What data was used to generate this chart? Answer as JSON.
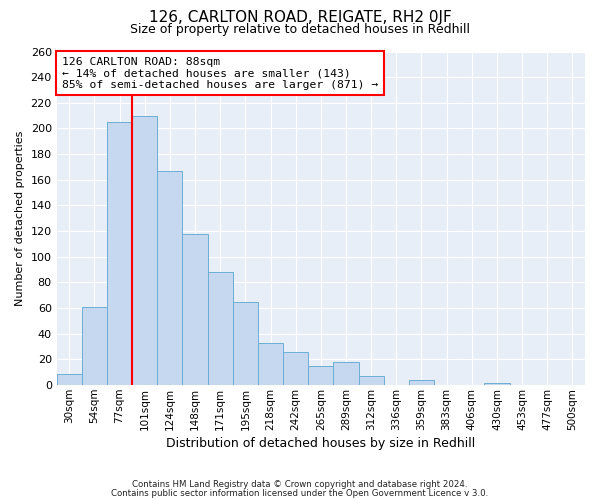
{
  "title": "126, CARLTON ROAD, REIGATE, RH2 0JF",
  "subtitle": "Size of property relative to detached houses in Redhill",
  "xlabel": "Distribution of detached houses by size in Redhill",
  "ylabel": "Number of detached properties",
  "bar_labels": [
    "30sqm",
    "54sqm",
    "77sqm",
    "101sqm",
    "124sqm",
    "148sqm",
    "171sqm",
    "195sqm",
    "218sqm",
    "242sqm",
    "265sqm",
    "289sqm",
    "312sqm",
    "336sqm",
    "359sqm",
    "383sqm",
    "406sqm",
    "430sqm",
    "453sqm",
    "477sqm",
    "500sqm"
  ],
  "bar_values": [
    9,
    61,
    205,
    210,
    167,
    118,
    88,
    65,
    33,
    26,
    15,
    18,
    7,
    0,
    4,
    0,
    0,
    2,
    0,
    0,
    0
  ],
  "bar_color": "#c5d8f0",
  "bar_edge_color": "#6baed6",
  "bar_width": 1.0,
  "ylim": [
    0,
    260
  ],
  "yticks": [
    0,
    20,
    40,
    60,
    80,
    100,
    120,
    140,
    160,
    180,
    200,
    220,
    240,
    260
  ],
  "red_line_x": 3.0,
  "annotation_title": "126 CARLTON ROAD: 88sqm",
  "annotation_line1": "← 14% of detached houses are smaller (143)",
  "annotation_line2": "85% of semi-detached houses are larger (871) →",
  "footer1": "Contains HM Land Registry data © Crown copyright and database right 2024.",
  "footer2": "Contains public sector information licensed under the Open Government Licence v 3.0.",
  "plot_bg_color": "#e8eef8",
  "fig_bg_color": "#ffffff",
  "grid_color": "#ffffff"
}
